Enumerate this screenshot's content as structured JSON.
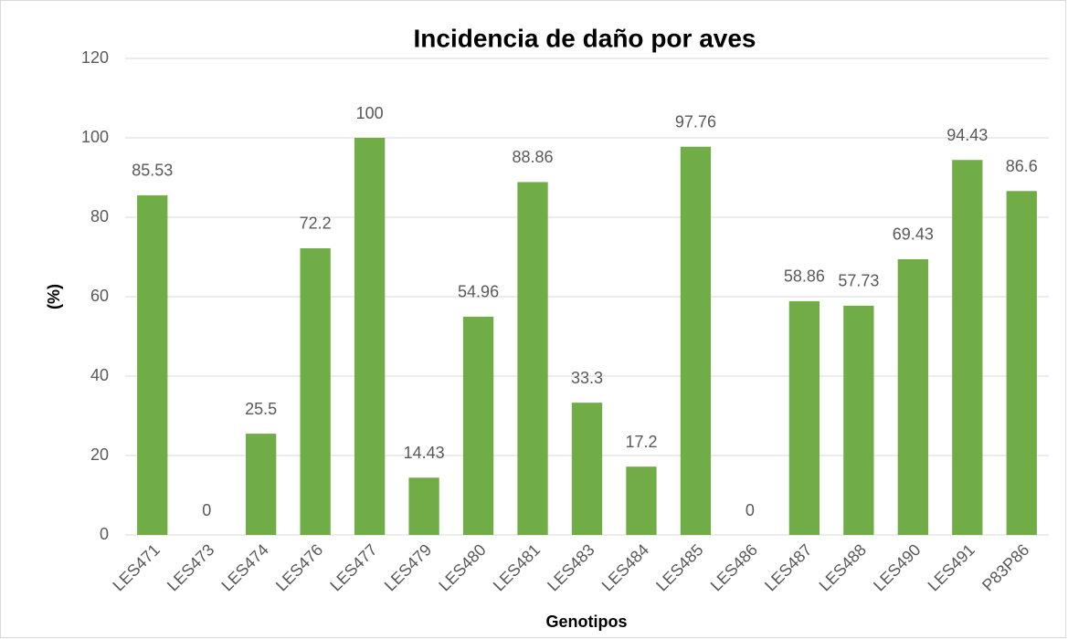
{
  "chart_data": {
    "type": "bar",
    "title": "Incidencia de daño por aves",
    "x_label": "Genotipos",
    "y_label": "(%)",
    "categories": [
      "LES471",
      "LES473",
      "LES474",
      "LES476",
      "LES477",
      "LES479",
      "LES480",
      "LES481",
      "LES483",
      "LES484",
      "LES485",
      "LES486",
      "LES487",
      "LES488",
      "LES490",
      "LES491",
      "P83P86"
    ],
    "values": [
      85.53,
      0,
      25.5,
      72.2,
      100,
      14.43,
      54.96,
      88.86,
      33.3,
      17.2,
      97.76,
      0,
      58.86,
      57.73,
      69.43,
      94.43,
      86.6
    ],
    "color": "#70ad47",
    "ylim": [
      0,
      120
    ],
    "yticks": [
      0,
      20,
      40,
      60,
      80,
      100,
      120
    ],
    "grid": true
  }
}
